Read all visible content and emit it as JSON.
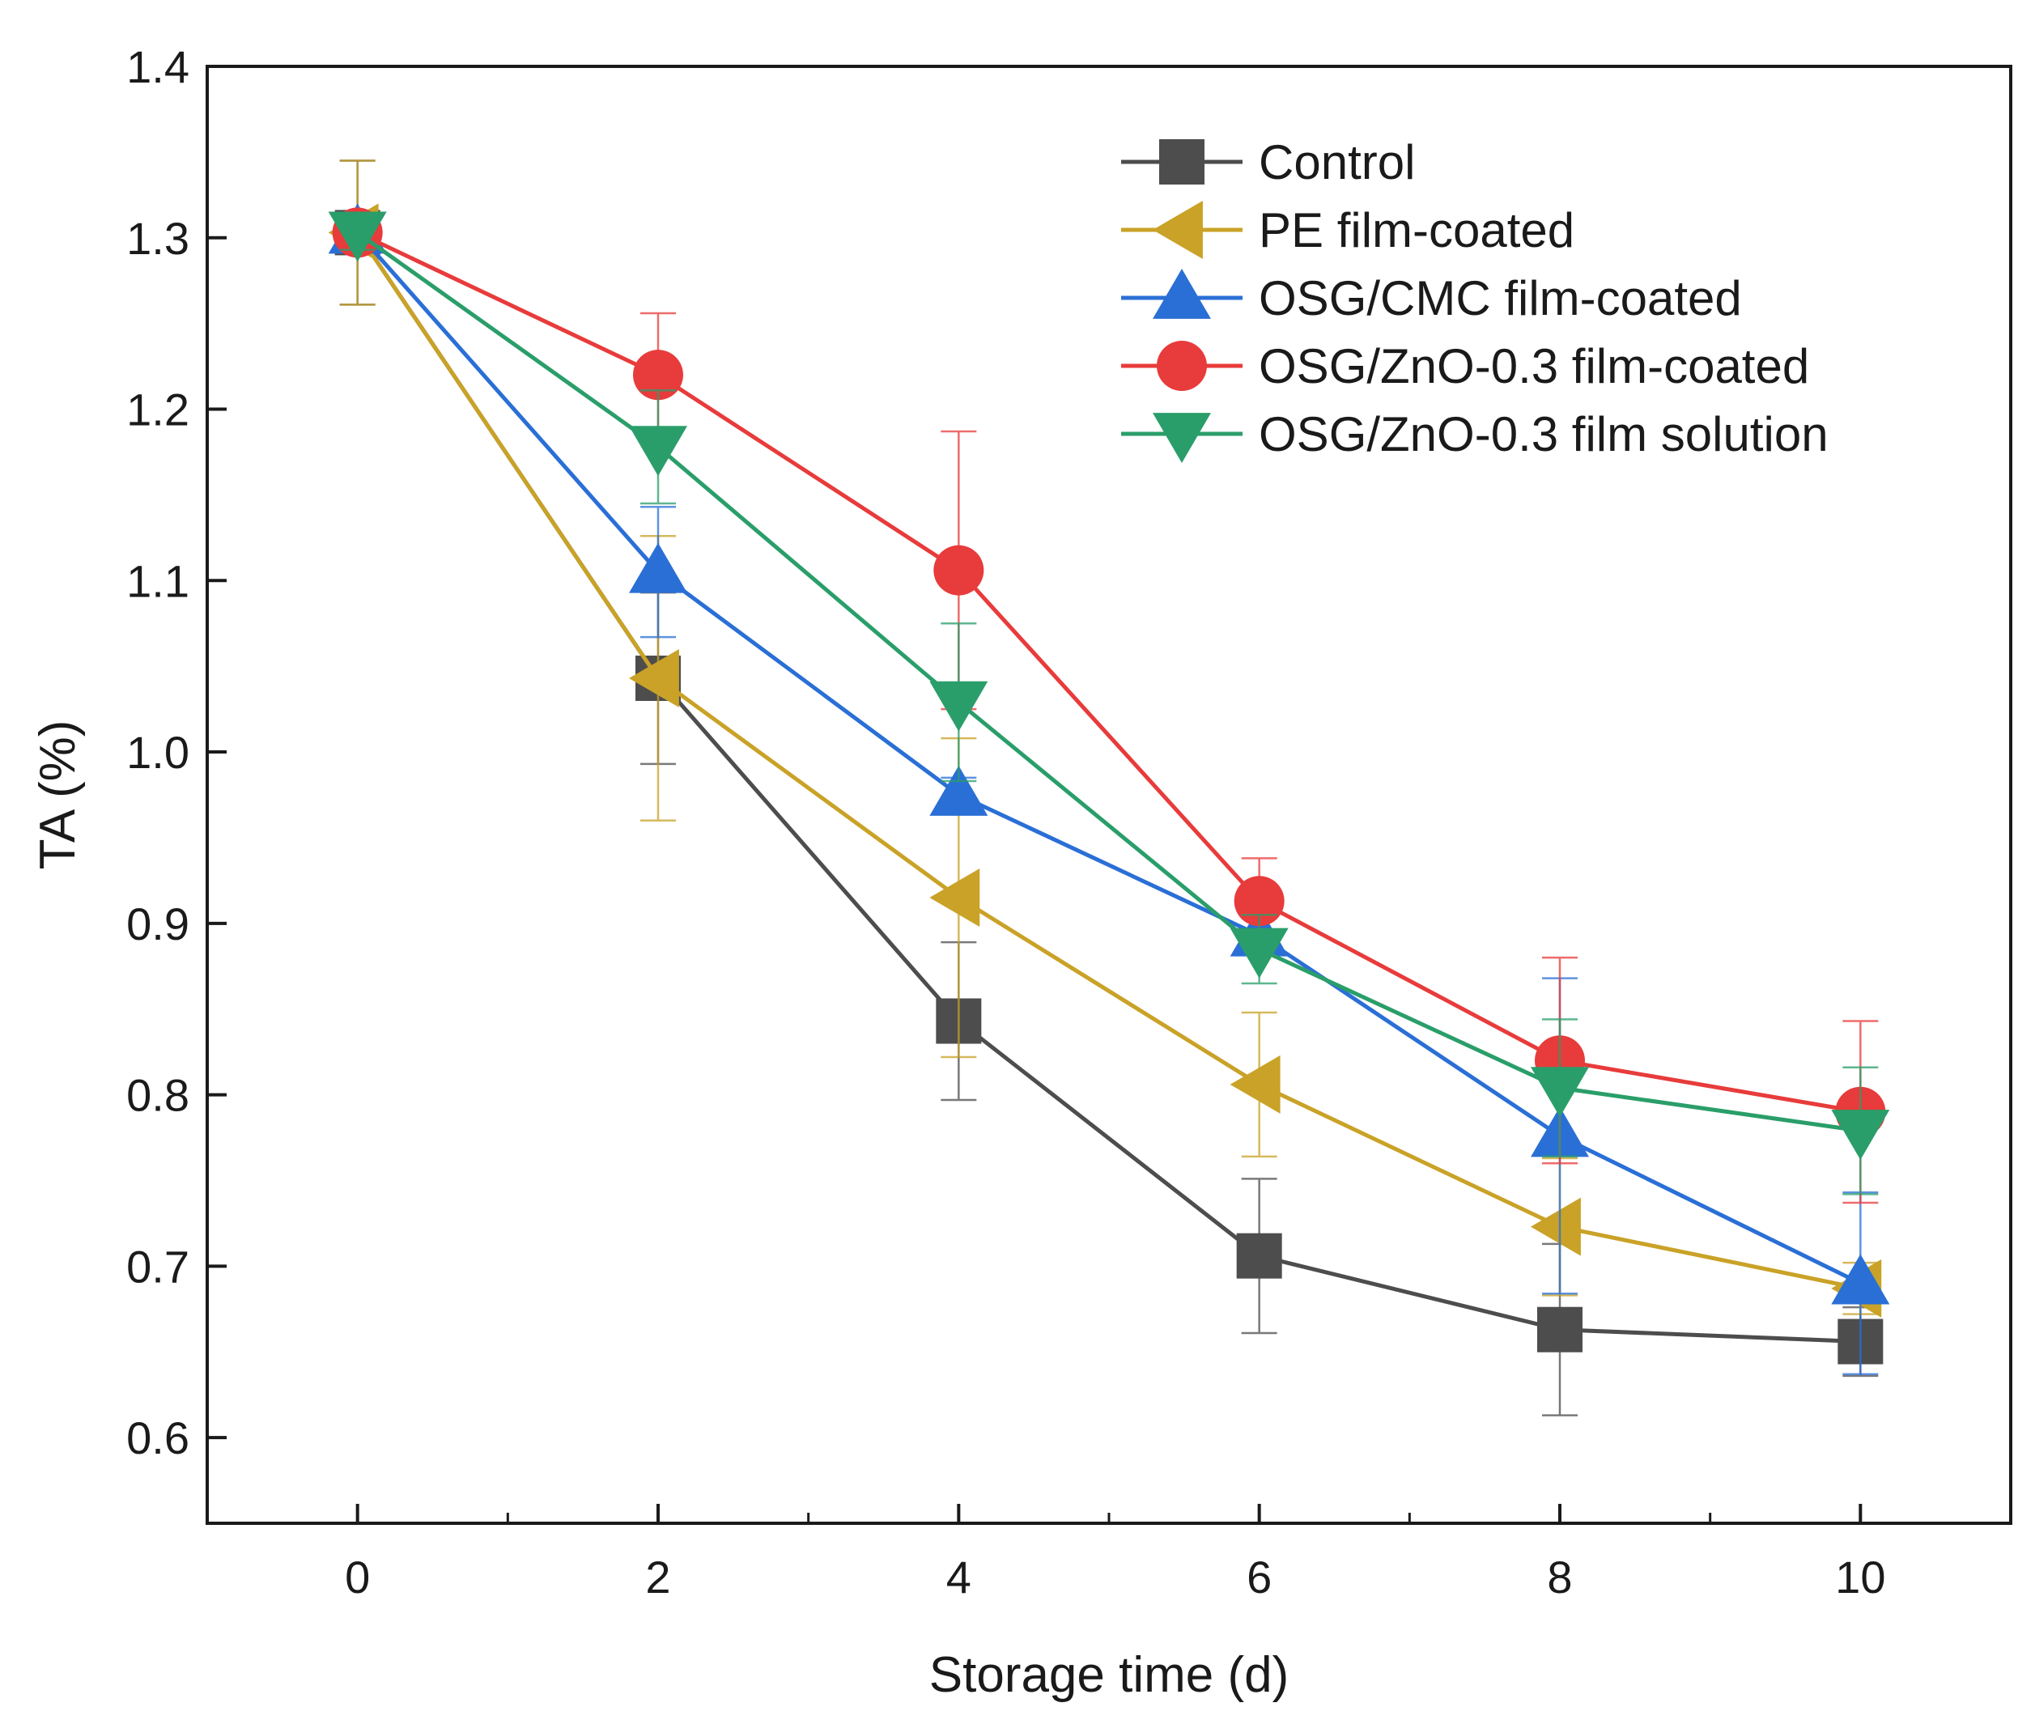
{
  "chart_data": {
    "type": "line",
    "title": "",
    "xlabel": "Storage time (d)",
    "ylabel": "TA (%)",
    "xlim": [
      -1,
      11
    ],
    "ylim": [
      0.55,
      1.4
    ],
    "x": [
      0,
      2,
      4,
      6,
      8,
      10
    ],
    "xticks": [
      0,
      2,
      4,
      6,
      8,
      10
    ],
    "xtick_labels": [
      "0",
      "2",
      "4",
      "6",
      "8",
      "10"
    ],
    "yticks": [
      0.6,
      0.7,
      0.8,
      0.9,
      1.0,
      1.1,
      1.2,
      1.3,
      1.4
    ],
    "ytick_labels": [
      "0.6",
      "0.7",
      "0.8",
      "0.9",
      "1.0",
      "1.1",
      "1.2",
      "1.3",
      "1.4"
    ],
    "grid": false,
    "legend_position": "top-right",
    "series": [
      {
        "name": "Control",
        "color": "#4d4d4d",
        "marker": "square",
        "values": [
          1.303,
          1.043,
          0.843,
          0.706,
          0.663,
          0.656
        ],
        "errors": [
          0.042,
          0.05,
          0.046,
          0.045,
          0.05,
          0.02
        ]
      },
      {
        "name": "PE film-coated",
        "color": "#c9a227",
        "marker": "triangle-left",
        "values": [
          1.303,
          1.043,
          0.915,
          0.806,
          0.723,
          0.687
        ],
        "errors": [
          0.042,
          0.083,
          0.093,
          0.042,
          0.04,
          0.015
        ]
      },
      {
        "name": "OSG/CMC film-coated",
        "color": "#2a6fd6",
        "marker": "triangle-up",
        "values": [
          1.303,
          1.105,
          0.975,
          0.893,
          0.776,
          0.69
        ],
        "errors": [
          0.01,
          0.038,
          0.01,
          0.01,
          0.092,
          0.053
        ]
      },
      {
        "name": "OSG/ZnO-0.3 film-coated",
        "color": "#e83b3b",
        "marker": "circle",
        "values": [
          1.303,
          1.22,
          1.106,
          0.913,
          0.82,
          0.79
        ],
        "errors": [
          0.01,
          0.036,
          0.081,
          0.025,
          0.06,
          0.053
        ]
      },
      {
        "name": "OSG/ZnO-0.3 film solution",
        "color": "#2a9e6a",
        "marker": "triangle-down",
        "values": [
          1.303,
          1.178,
          1.029,
          0.885,
          0.804,
          0.779
        ],
        "errors": [
          0.01,
          0.033,
          0.046,
          0.02,
          0.04,
          0.037
        ]
      }
    ]
  }
}
